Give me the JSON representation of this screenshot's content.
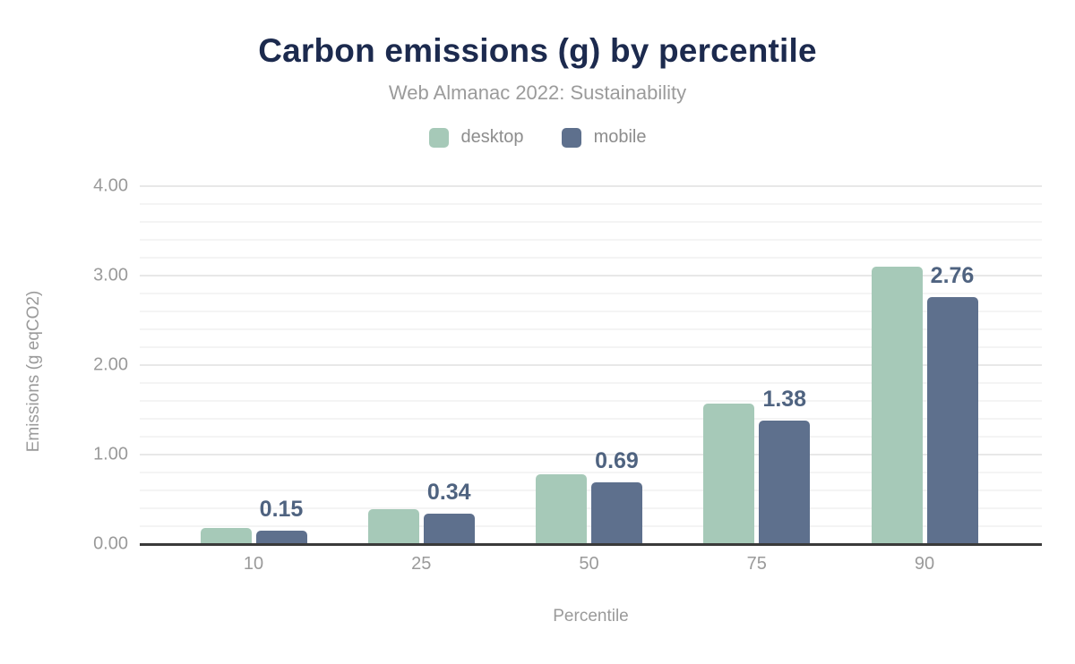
{
  "title": "Carbon emissions (g) by percentile",
  "subtitle": "Web Almanac 2022: Sustainability",
  "legend": [
    {
      "label": "desktop",
      "color": "#a6c9b8"
    },
    {
      "label": "mobile",
      "color": "#5e708d"
    }
  ],
  "colors": {
    "title": "#1c2a4e",
    "subtitle": "#9b9b9b",
    "axis_text": "#9a9a9a",
    "legend_text": "#8d8d8d",
    "value_label": "#4f6380",
    "desktop_bar": "#a6c9b8",
    "mobile_bar": "#5e708d",
    "grid_minor": "#f4f4f4",
    "grid_major": "#e8e8e8",
    "axis_line": "#3a3a3a",
    "background": "#ffffff"
  },
  "chart_data": {
    "type": "bar",
    "title": "Carbon emissions (g) by percentile",
    "subtitle": "Web Almanac 2022: Sustainability",
    "categories": [
      "10",
      "25",
      "50",
      "75",
      "90"
    ],
    "series": [
      {
        "name": "desktop",
        "color": "#a6c9b8",
        "values": [
          0.18,
          0.39,
          0.78,
          1.57,
          3.1
        ],
        "labels_shown": false
      },
      {
        "name": "mobile",
        "color": "#5e708d",
        "values": [
          0.15,
          0.34,
          0.69,
          1.38,
          2.76
        ],
        "labels_shown": true,
        "data_labels": [
          "0.15",
          "0.34",
          "0.69",
          "1.38",
          "2.76"
        ]
      }
    ],
    "xlabel": "Percentile",
    "ylabel": "Emissions (g eqCO2)",
    "ylim": [
      0,
      4
    ],
    "yticks": [
      "0.00",
      "1.00",
      "2.00",
      "3.00",
      "4.00"
    ],
    "minor_grid_step": 0.2,
    "major_grid_step": 1.0,
    "grid": true,
    "legend_position": "top"
  }
}
